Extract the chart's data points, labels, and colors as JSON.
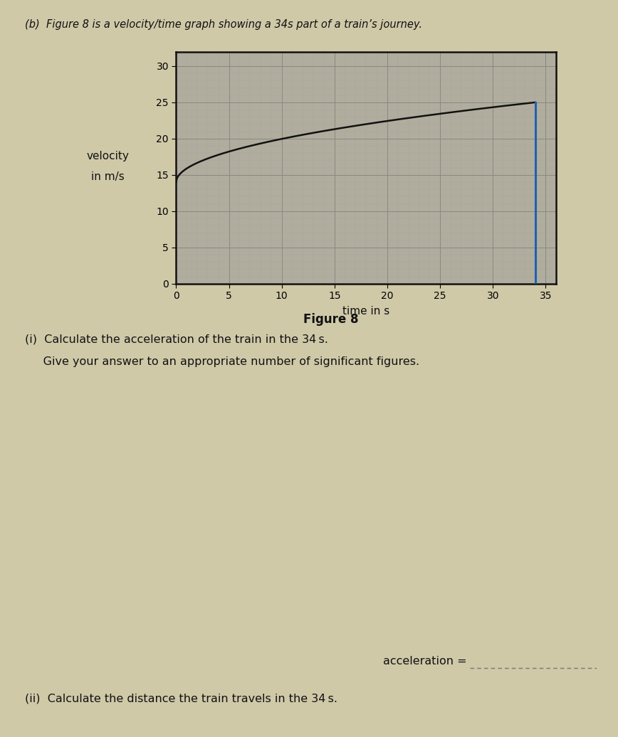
{
  "title_text": "(b)  Figure 8 is a velocity/time graph showing a 34s part of a train’s journey.",
  "figure_label": "Figure 8",
  "question_i": "(i)  Calculate the acceleration of the train in the 34 s.",
  "question_i_sub": "     Give your answer to an appropriate number of significant figures.",
  "question_ii": "(ii)  Calculate the distance the train travels in the 34 s.",
  "acceleration_label": "acceleration = ",
  "ylabel_line1": "velocity",
  "ylabel_line2": "in m/s",
  "xlabel": "time in s",
  "xlim": [
    0,
    36
  ],
  "ylim": [
    0,
    32
  ],
  "xticks": [
    0,
    5,
    10,
    15,
    20,
    25,
    30,
    35
  ],
  "yticks": [
    0,
    5,
    10,
    15,
    20,
    25,
    30
  ],
  "curve_v0": 14.0,
  "curve_v1": 25.0,
  "curve_t1": 34.0,
  "vertical_drop_color": "#2060b0",
  "curve_color": "#111111",
  "page_bg": "#cfc9a8",
  "graph_area_color": "#b0ad9e",
  "spine_color": "#111111",
  "text_color": "#111111",
  "major_grid_color": "#888880",
  "minor_grid_color": "#aaa89a",
  "dotted_line_color": "#777777"
}
